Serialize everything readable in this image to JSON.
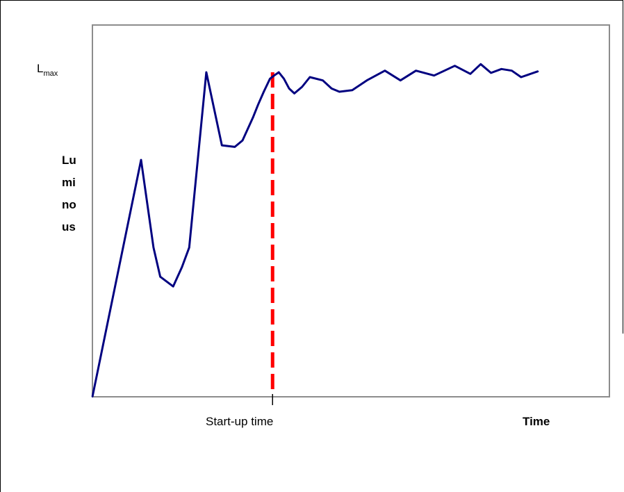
{
  "chart_data": {
    "type": "line",
    "title": "",
    "xlabel": "Time",
    "ylabel_lines": [
      "Lu",
      "mi",
      "no",
      "us"
    ],
    "y_reference_label": {
      "main": "L",
      "sub": "max"
    },
    "marker": {
      "label": "Start-up time",
      "x": 0.348
    },
    "xlim": [
      0,
      1
    ],
    "ylim": [
      0,
      1
    ],
    "grid": false,
    "colors": {
      "series": "#000080",
      "marker": "#ff0000",
      "frame": "#8c8c8c"
    },
    "series": [
      {
        "x": [
          0,
          0.094,
          0.118,
          0.131,
          0.156,
          0.173,
          0.187,
          0.22,
          0.25,
          0.275,
          0.29,
          0.31,
          0.32,
          0.331,
          0.343,
          0.351,
          0.36,
          0.37,
          0.38,
          0.39,
          0.405,
          0.42,
          0.445,
          0.462,
          0.477,
          0.502,
          0.53,
          0.565,
          0.595,
          0.625,
          0.66,
          0.7,
          0.73,
          0.75,
          0.77,
          0.79,
          0.81,
          0.828,
          0.861
        ],
        "y": [
          0,
          0.73,
          0.46,
          0.37,
          0.34,
          0.4,
          0.46,
          1.0,
          0.775,
          0.77,
          0.79,
          0.86,
          0.9,
          0.94,
          0.98,
          0.99,
          1.0,
          0.98,
          0.95,
          0.935,
          0.955,
          0.985,
          0.975,
          0.95,
          0.94,
          0.945,
          0.975,
          1.005,
          0.975,
          1.005,
          0.99,
          1.02,
          0.995,
          1.025,
          0.998,
          1.01,
          1.005,
          0.985,
          1.003
        ]
      }
    ]
  }
}
